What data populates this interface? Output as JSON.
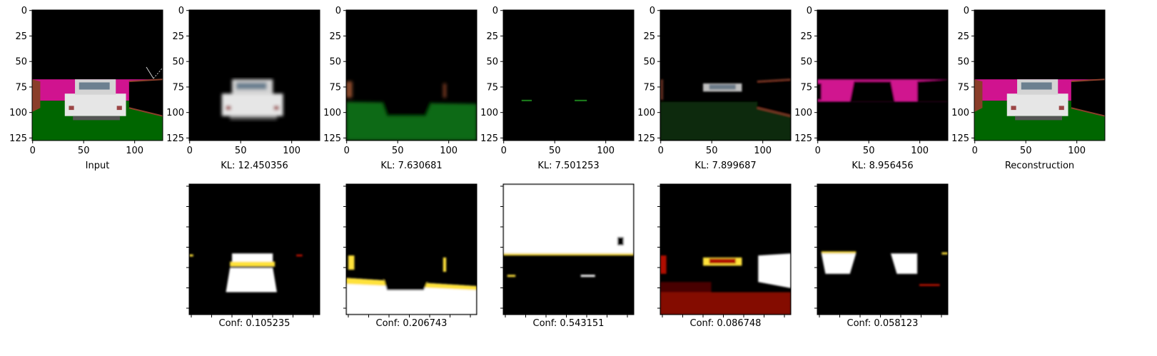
{
  "chart_data": [
    {
      "type": "image",
      "panel": "input",
      "caption": "Input",
      "xlim": [
        0,
        128
      ],
      "ylim": [
        128,
        0
      ],
      "xticks": [
        "0",
        "50",
        "100"
      ],
      "yticks": [
        "0",
        "25",
        "50",
        "75",
        "100",
        "125"
      ],
      "content": "rgb-scene-white-car"
    },
    {
      "type": "image",
      "panel": "component-1",
      "caption": "KL: 12.450356",
      "kl": 12.450356,
      "xlim": [
        0,
        128
      ],
      "ylim": [
        128,
        0
      ],
      "xticks": [
        "0",
        "50",
        "100"
      ],
      "yticks": [
        "0",
        "25",
        "50",
        "75",
        "100",
        "125"
      ],
      "content": "car-only"
    },
    {
      "type": "image",
      "panel": "component-2",
      "caption": "KL: 7.630681",
      "kl": 7.630681,
      "xlim": [
        0,
        128
      ],
      "ylim": [
        128,
        0
      ],
      "xticks": [
        "0",
        "50",
        "100"
      ],
      "yticks": [
        "0",
        "25",
        "50",
        "75",
        "100",
        "125"
      ],
      "content": "ground-green"
    },
    {
      "type": "image",
      "panel": "component-3",
      "caption": "KL: 7.501253",
      "kl": 7.501253,
      "xlim": [
        0,
        128
      ],
      "ylim": [
        128,
        0
      ],
      "xticks": [
        "0",
        "50",
        "100"
      ],
      "yticks": [
        "0",
        "25",
        "50",
        "75",
        "100",
        "125"
      ],
      "content": "mostly-empty"
    },
    {
      "type": "image",
      "panel": "component-4",
      "caption": "KL: 7.899687",
      "kl": 7.899687,
      "xlim": [
        0,
        128
      ],
      "ylim": [
        128,
        0
      ],
      "xticks": [
        "0",
        "50",
        "100"
      ],
      "yticks": [
        "0",
        "25",
        "50",
        "75",
        "100",
        "125"
      ],
      "content": "wall-and-roof"
    },
    {
      "type": "image",
      "panel": "component-5",
      "caption": "KL: 8.956456",
      "kl": 8.956456,
      "xlim": [
        0,
        128
      ],
      "ylim": [
        128,
        0
      ],
      "xticks": [
        "0",
        "50",
        "100"
      ],
      "yticks": [
        "0",
        "25",
        "50",
        "75",
        "100",
        "125"
      ],
      "content": "magenta-band"
    },
    {
      "type": "image",
      "panel": "reconstruction",
      "caption": "Reconstruction",
      "xlim": [
        0,
        128
      ],
      "ylim": [
        128,
        0
      ],
      "xticks": [
        "0",
        "50",
        "100"
      ],
      "yticks": [
        "0",
        "25",
        "50",
        "75",
        "100",
        "125"
      ],
      "content": "rgb-scene-white-car"
    },
    {
      "type": "heatmap",
      "panel": "mask-1",
      "caption": "Conf: 0.105235",
      "conf": 0.105235,
      "colormap": "hot",
      "content": "car-mask"
    },
    {
      "type": "heatmap",
      "panel": "mask-2",
      "caption": "Conf: 0.206743",
      "conf": 0.206743,
      "colormap": "hot",
      "content": "ground-mask"
    },
    {
      "type": "heatmap",
      "panel": "mask-3",
      "caption": "Conf: 0.543151",
      "conf": 0.543151,
      "colormap": "hot",
      "content": "sky-mask"
    },
    {
      "type": "heatmap",
      "panel": "mask-4",
      "caption": "Conf: 0.086748",
      "conf": 0.086748,
      "colormap": "hot",
      "content": "walls-mask"
    },
    {
      "type": "heatmap",
      "panel": "mask-5",
      "caption": "Conf: 0.058123",
      "conf": 0.058123,
      "colormap": "hot",
      "content": "magenta-mask"
    }
  ],
  "colors": {
    "sky": "#000000",
    "magenta": "#d0138f",
    "ground": "#006600",
    "car": "#e6e6e6",
    "wall": "#8a3e2a",
    "hot_white": "#ffffff",
    "hot_yellow": "#ffe23a",
    "hot_red": "#b01000"
  }
}
